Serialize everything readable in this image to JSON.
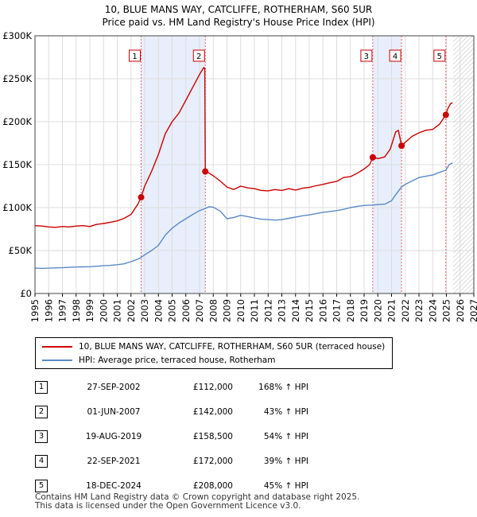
{
  "title_line1": "10, BLUE MANS WAY, CATCLIFFE, ROTHERHAM, S60 5UR",
  "title_line2": "Price paid vs. HM Land Registry's House Price Index (HPI)",
  "chart_data": {
    "type": "line",
    "ylim": [
      0,
      300000
    ],
    "xlim": [
      1995,
      2027
    ],
    "y_ticks": [
      {
        "value": 0,
        "label": "£0"
      },
      {
        "value": 50000,
        "label": "£50K"
      },
      {
        "value": 100000,
        "label": "£100K"
      },
      {
        "value": 150000,
        "label": "£150K"
      },
      {
        "value": 200000,
        "label": "£200K"
      },
      {
        "value": 250000,
        "label": "£250K"
      },
      {
        "value": 300000,
        "label": "£300K"
      }
    ],
    "x_ticks": [
      "1995",
      "1996",
      "1997",
      "1998",
      "1999",
      "2000",
      "2001",
      "2002",
      "2003",
      "2004",
      "2005",
      "2006",
      "2007",
      "2008",
      "2009",
      "2010",
      "2011",
      "2012",
      "2013",
      "2014",
      "2015",
      "2016",
      "2017",
      "2018",
      "2019",
      "2020",
      "2021",
      "2022",
      "2023",
      "2024",
      "2025",
      "2026",
      "2027"
    ],
    "grid": true,
    "shaded_ranges": [
      [
        2002.74,
        2007.42
      ],
      [
        2019.63,
        2021.73
      ]
    ],
    "hatched_from": 2025.5,
    "series": [
      {
        "name": "10, BLUE MANS WAY, CATCLIFFE, ROTHERHAM, S60 5UR (terraced house)",
        "color": "#cc0000",
        "points": [
          [
            1995.0,
            79000
          ],
          [
            1995.5,
            78500
          ],
          [
            1996.0,
            77500
          ],
          [
            1996.5,
            77000
          ],
          [
            1997.0,
            78000
          ],
          [
            1997.5,
            77500
          ],
          [
            1998.0,
            78500
          ],
          [
            1998.5,
            79000
          ],
          [
            1999.0,
            78000
          ],
          [
            1999.5,
            80500
          ],
          [
            2000.0,
            81500
          ],
          [
            2000.5,
            83000
          ],
          [
            2001.0,
            84500
          ],
          [
            2001.5,
            87500
          ],
          [
            2002.0,
            92000
          ],
          [
            2002.5,
            104000
          ],
          [
            2002.74,
            112000
          ],
          [
            2003.0,
            125000
          ],
          [
            2003.5,
            142000
          ],
          [
            2004.0,
            162000
          ],
          [
            2004.5,
            186000
          ],
          [
            2005.0,
            200000
          ],
          [
            2005.5,
            210000
          ],
          [
            2006.0,
            225000
          ],
          [
            2006.5,
            240000
          ],
          [
            2007.0,
            255000
          ],
          [
            2007.3,
            263000
          ],
          [
            2007.38,
            262000
          ],
          [
            2007.42,
            142000
          ],
          [
            2007.6,
            141000
          ],
          [
            2008.0,
            137000
          ],
          [
            2008.5,
            131000
          ],
          [
            2009.0,
            124000
          ],
          [
            2009.5,
            121000
          ],
          [
            2010.0,
            125000
          ],
          [
            2010.5,
            123000
          ],
          [
            2011.0,
            122000
          ],
          [
            2011.5,
            120000
          ],
          [
            2012.0,
            119500
          ],
          [
            2012.5,
            121000
          ],
          [
            2013.0,
            120000
          ],
          [
            2013.5,
            122000
          ],
          [
            2014.0,
            120500
          ],
          [
            2014.5,
            122500
          ],
          [
            2015.0,
            123500
          ],
          [
            2015.5,
            125500
          ],
          [
            2016.0,
            127000
          ],
          [
            2016.5,
            129000
          ],
          [
            2017.0,
            130500
          ],
          [
            2017.5,
            135000
          ],
          [
            2018.0,
            136000
          ],
          [
            2018.5,
            140000
          ],
          [
            2019.0,
            145000
          ],
          [
            2019.4,
            150000
          ],
          [
            2019.63,
            158500
          ],
          [
            2020.0,
            157000
          ],
          [
            2020.5,
            159000
          ],
          [
            2020.9,
            168000
          ],
          [
            2021.3,
            188000
          ],
          [
            2021.5,
            190000
          ],
          [
            2021.73,
            172000
          ],
          [
            2022.0,
            176000
          ],
          [
            2022.5,
            183000
          ],
          [
            2023.0,
            187000
          ],
          [
            2023.5,
            190000
          ],
          [
            2024.0,
            191000
          ],
          [
            2024.5,
            197000
          ],
          [
            2024.96,
            208000
          ],
          [
            2025.1,
            215000
          ],
          [
            2025.3,
            221000
          ],
          [
            2025.45,
            222000
          ]
        ]
      },
      {
        "name": "HPI: Average price, terraced house, Rotherham",
        "color": "#5b8ac6",
        "points": [
          [
            1995.0,
            29500
          ],
          [
            1995.5,
            29300
          ],
          [
            1996.0,
            29500
          ],
          [
            1996.5,
            29800
          ],
          [
            1997.0,
            30000
          ],
          [
            1997.5,
            30500
          ],
          [
            1998.0,
            30800
          ],
          [
            1998.5,
            31000
          ],
          [
            1999.0,
            31200
          ],
          [
            1999.5,
            31800
          ],
          [
            2000.0,
            32300
          ],
          [
            2000.5,
            32800
          ],
          [
            2001.0,
            33500
          ],
          [
            2001.5,
            34500
          ],
          [
            2002.0,
            37000
          ],
          [
            2002.5,
            40000
          ],
          [
            2002.74,
            42000
          ],
          [
            2003.0,
            45000
          ],
          [
            2003.5,
            50000
          ],
          [
            2004.0,
            56000
          ],
          [
            2004.5,
            68000
          ],
          [
            2005.0,
            76000
          ],
          [
            2005.5,
            82000
          ],
          [
            2006.0,
            87000
          ],
          [
            2006.5,
            92000
          ],
          [
            2007.0,
            96500
          ],
          [
            2007.42,
            99000
          ],
          [
            2007.7,
            101000
          ],
          [
            2008.0,
            100500
          ],
          [
            2008.5,
            96000
          ],
          [
            2009.0,
            87000
          ],
          [
            2009.5,
            88500
          ],
          [
            2010.0,
            91000
          ],
          [
            2010.5,
            89500
          ],
          [
            2011.0,
            88000
          ],
          [
            2011.5,
            86500
          ],
          [
            2012.0,
            86000
          ],
          [
            2012.5,
            85500
          ],
          [
            2013.0,
            86000
          ],
          [
            2013.5,
            87500
          ],
          [
            2014.0,
            89000
          ],
          [
            2014.5,
            90500
          ],
          [
            2015.0,
            91500
          ],
          [
            2015.5,
            93000
          ],
          [
            2016.0,
            94500
          ],
          [
            2016.5,
            95500
          ],
          [
            2017.0,
            96500
          ],
          [
            2017.5,
            98000
          ],
          [
            2018.0,
            100000
          ],
          [
            2018.5,
            101500
          ],
          [
            2019.0,
            102500
          ],
          [
            2019.63,
            103000
          ],
          [
            2020.0,
            103500
          ],
          [
            2020.5,
            104000
          ],
          [
            2021.0,
            108000
          ],
          [
            2021.3,
            115000
          ],
          [
            2021.73,
            124000
          ],
          [
            2022.0,
            127000
          ],
          [
            2022.5,
            131000
          ],
          [
            2023.0,
            135000
          ],
          [
            2023.5,
            136500
          ],
          [
            2024.0,
            138000
          ],
          [
            2024.5,
            141000
          ],
          [
            2024.96,
            143500
          ],
          [
            2025.2,
            150000
          ],
          [
            2025.45,
            152000
          ]
        ]
      }
    ],
    "sales": [
      {
        "id": "1",
        "x": 2002.74,
        "y": 112000
      },
      {
        "id": "2",
        "x": 2007.42,
        "y": 142000
      },
      {
        "id": "3",
        "x": 2019.63,
        "y": 158500
      },
      {
        "id": "4",
        "x": 2021.73,
        "y": 172000
      },
      {
        "id": "5",
        "x": 2024.96,
        "y": 208000
      }
    ]
  },
  "legend": {
    "series1": "10, BLUE MANS WAY, CATCLIFFE, ROTHERHAM, S60 5UR (terraced house)",
    "series2": "HPI: Average price, terraced house, Rotherham"
  },
  "table": [
    {
      "num": "1",
      "date": "27-SEP-2002",
      "price": "£112,000",
      "hpi": "168% ↑ HPI"
    },
    {
      "num": "2",
      "date": "01-JUN-2007",
      "price": "£142,000",
      "hpi": "43% ↑ HPI"
    },
    {
      "num": "3",
      "date": "19-AUG-2019",
      "price": "£158,500",
      "hpi": "54% ↑ HPI"
    },
    {
      "num": "4",
      "date": "22-SEP-2021",
      "price": "£172,000",
      "hpi": "39% ↑ HPI"
    },
    {
      "num": "5",
      "date": "18-DEC-2024",
      "price": "£208,000",
      "hpi": "45% ↑ HPI"
    }
  ],
  "footer_line1": "Contains HM Land Registry data © Crown copyright and database right 2025.",
  "footer_line2": "This data is licensed under the Open Government Licence v3.0."
}
